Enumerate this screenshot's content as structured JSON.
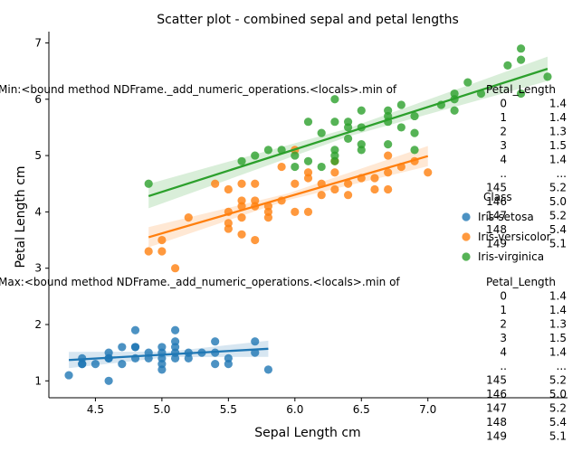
{
  "chart_data": {
    "type": "scatter",
    "title": "Scatter plot - combined sepal and petal lengths",
    "xlabel": "Sepal Length cm",
    "ylabel": "Petal Length cm",
    "xlim": [
      4.15,
      8.05
    ],
    "ylim": [
      0.7,
      7.2
    ],
    "xticks": [
      "4.5",
      "5.0",
      "5.5",
      "6.0",
      "6.5",
      "7.0"
    ],
    "xtick_values": [
      4.5,
      5.0,
      5.5,
      6.0,
      6.5,
      7.0
    ],
    "yticks": [
      "1",
      "2",
      "3",
      "4",
      "5",
      "6",
      "7"
    ],
    "ytick_values": [
      1,
      2,
      3,
      4,
      5,
      6,
      7
    ],
    "grid": false,
    "legend": {
      "title": "Class",
      "placement": "right",
      "entries": [
        "Iris-setosa",
        "Iris-versicolor",
        "Iris-virginica"
      ]
    },
    "series": [
      {
        "name": "Iris-setosa",
        "color": "#1f77b4",
        "points": [
          [
            4.3,
            1.1
          ],
          [
            4.4,
            1.3
          ],
          [
            4.4,
            1.4
          ],
          [
            4.4,
            1.3
          ],
          [
            4.5,
            1.3
          ],
          [
            4.6,
            1.0
          ],
          [
            4.6,
            1.4
          ],
          [
            4.6,
            1.5
          ],
          [
            4.6,
            1.4
          ],
          [
            4.7,
            1.3
          ],
          [
            4.7,
            1.6
          ],
          [
            4.8,
            1.6
          ],
          [
            4.8,
            1.4
          ],
          [
            4.8,
            1.9
          ],
          [
            4.8,
            1.6
          ],
          [
            4.9,
            1.4
          ],
          [
            4.9,
            1.5
          ],
          [
            5.0,
            1.4
          ],
          [
            5.0,
            1.5
          ],
          [
            5.0,
            1.6
          ],
          [
            5.0,
            1.2
          ],
          [
            5.0,
            1.3
          ],
          [
            5.1,
            1.4
          ],
          [
            5.1,
            1.5
          ],
          [
            5.1,
            1.7
          ],
          [
            5.1,
            1.9
          ],
          [
            5.1,
            1.6
          ],
          [
            5.2,
            1.5
          ],
          [
            5.2,
            1.4
          ],
          [
            5.3,
            1.5
          ],
          [
            5.4,
            1.7
          ],
          [
            5.4,
            1.5
          ],
          [
            5.4,
            1.3
          ],
          [
            5.5,
            1.4
          ],
          [
            5.5,
            1.3
          ],
          [
            5.7,
            1.5
          ],
          [
            5.7,
            1.7
          ],
          [
            5.8,
            1.2
          ]
        ],
        "regression": {
          "x": [
            4.3,
            5.8
          ],
          "y": [
            1.37,
            1.57
          ]
        }
      },
      {
        "name": "Iris-versicolor",
        "color": "#ff7f0e",
        "points": [
          [
            4.9,
            3.3
          ],
          [
            5.0,
            3.5
          ],
          [
            5.0,
            3.3
          ],
          [
            5.1,
            3.0
          ],
          [
            5.2,
            3.9
          ],
          [
            5.4,
            4.5
          ],
          [
            5.5,
            4.0
          ],
          [
            5.5,
            3.8
          ],
          [
            5.5,
            4.4
          ],
          [
            5.5,
            3.7
          ],
          [
            5.6,
            4.5
          ],
          [
            5.6,
            3.6
          ],
          [
            5.6,
            4.2
          ],
          [
            5.6,
            3.9
          ],
          [
            5.6,
            4.1
          ],
          [
            5.7,
            4.5
          ],
          [
            5.7,
            3.5
          ],
          [
            5.7,
            4.2
          ],
          [
            5.7,
            4.1
          ],
          [
            5.8,
            4.1
          ],
          [
            5.8,
            4.0
          ],
          [
            5.8,
            3.9
          ],
          [
            5.9,
            4.8
          ],
          [
            5.9,
            4.2
          ],
          [
            6.0,
            4.5
          ],
          [
            6.0,
            5.1
          ],
          [
            6.0,
            4.0
          ],
          [
            6.1,
            4.7
          ],
          [
            6.1,
            4.6
          ],
          [
            6.1,
            4.0
          ],
          [
            6.2,
            4.5
          ],
          [
            6.2,
            4.3
          ],
          [
            6.3,
            4.9
          ],
          [
            6.3,
            4.7
          ],
          [
            6.3,
            4.4
          ],
          [
            6.4,
            4.5
          ],
          [
            6.4,
            4.3
          ],
          [
            6.5,
            4.6
          ],
          [
            6.6,
            4.4
          ],
          [
            6.6,
            4.6
          ],
          [
            6.7,
            4.7
          ],
          [
            6.7,
            5.0
          ],
          [
            6.7,
            4.4
          ],
          [
            6.8,
            4.8
          ],
          [
            6.9,
            4.9
          ],
          [
            7.0,
            4.7
          ]
        ],
        "regression": {
          "x": [
            4.9,
            7.0
          ],
          "y": [
            3.55,
            4.99
          ]
        }
      },
      {
        "name": "Iris-virginica",
        "color": "#2ca02c",
        "points": [
          [
            4.9,
            4.5
          ],
          [
            5.6,
            4.9
          ],
          [
            5.7,
            5.0
          ],
          [
            5.8,
            5.1
          ],
          [
            5.9,
            5.1
          ],
          [
            6.0,
            4.8
          ],
          [
            6.0,
            5.0
          ],
          [
            6.1,
            5.6
          ],
          [
            6.1,
            4.9
          ],
          [
            6.2,
            5.4
          ],
          [
            6.2,
            4.8
          ],
          [
            6.3,
            6.0
          ],
          [
            6.3,
            5.6
          ],
          [
            6.3,
            5.1
          ],
          [
            6.3,
            4.9
          ],
          [
            6.3,
            5.0
          ],
          [
            6.4,
            5.6
          ],
          [
            6.4,
            5.3
          ],
          [
            6.4,
            5.5
          ],
          [
            6.5,
            5.8
          ],
          [
            6.5,
            5.5
          ],
          [
            6.5,
            5.2
          ],
          [
            6.5,
            5.1
          ],
          [
            6.7,
            5.8
          ],
          [
            6.7,
            5.7
          ],
          [
            6.7,
            5.6
          ],
          [
            6.7,
            5.2
          ],
          [
            6.8,
            5.9
          ],
          [
            6.8,
            5.5
          ],
          [
            6.9,
            5.7
          ],
          [
            6.9,
            5.4
          ],
          [
            6.9,
            5.1
          ],
          [
            7.1,
            5.9
          ],
          [
            7.2,
            6.1
          ],
          [
            7.2,
            6.0
          ],
          [
            7.2,
            5.8
          ],
          [
            7.3,
            6.3
          ],
          [
            7.4,
            6.1
          ],
          [
            7.6,
            6.6
          ],
          [
            7.7,
            6.9
          ],
          [
            7.7,
            6.7
          ],
          [
            7.7,
            6.1
          ],
          [
            7.9,
            6.4
          ]
        ],
        "regression": {
          "x": [
            4.9,
            7.9
          ],
          "y": [
            4.28,
            6.54
          ]
        }
      }
    ],
    "annotations": [
      {
        "position": "upper",
        "header": "Min:<bound method NDFrame._add_numeric_operations.<locals>.min of",
        "column": "Petal_Length",
        "rows": [
          [
            "0",
            "1.4"
          ],
          [
            "1",
            "1.4"
          ],
          [
            "2",
            "1.3"
          ],
          [
            "3",
            "1.5"
          ],
          [
            "4",
            "1.4"
          ],
          [
            "..",
            "..."
          ],
          [
            "145",
            "5.2"
          ],
          [
            "146",
            "5.0"
          ],
          [
            "147",
            "5.2"
          ],
          [
            "148",
            "5.4"
          ],
          [
            "149",
            "5.1"
          ]
        ]
      },
      {
        "position": "lower",
        "header": "Max:<bound method NDFrame._add_numeric_operations.<locals>.min of",
        "column": "Petal_Length",
        "rows": [
          [
            "0",
            "1.4"
          ],
          [
            "1",
            "1.4"
          ],
          [
            "2",
            "1.3"
          ],
          [
            "3",
            "1.5"
          ],
          [
            "4",
            "1.4"
          ],
          [
            "..",
            "..."
          ],
          [
            "145",
            "5.2"
          ],
          [
            "146",
            "5.0"
          ],
          [
            "147",
            "5.2"
          ],
          [
            "148",
            "5.4"
          ],
          [
            "149",
            "5.1"
          ]
        ]
      }
    ]
  }
}
